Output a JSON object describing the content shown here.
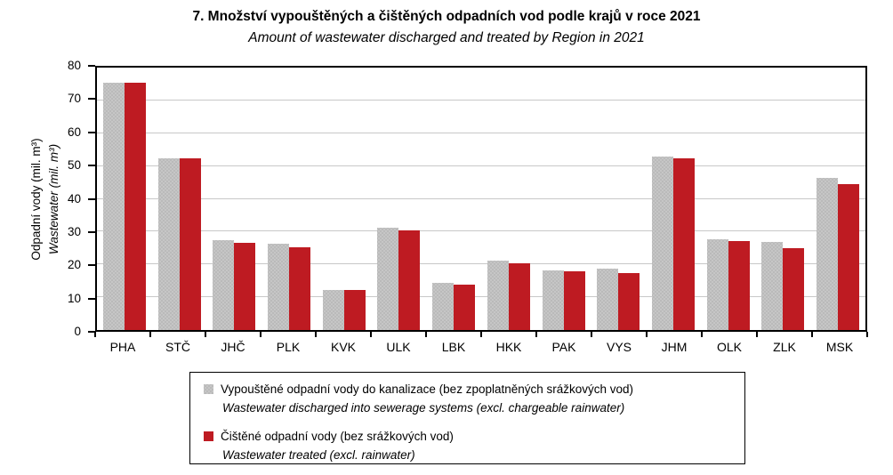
{
  "title": "7. Množství vypouštěných a čištěných odpadních vod podle krajů v roce 2021",
  "subtitle": "Amount of wastewater discharged and treated by Region in 2021",
  "y_axis": {
    "label_cs": "Odpadní vody (mil. m³)",
    "label_en": "Wastewater (mil. m³)",
    "ticks": [
      0,
      10,
      20,
      30,
      40,
      50,
      60,
      70,
      80
    ],
    "max": 80
  },
  "colors": {
    "bar_gray_base": "#c6c6c6",
    "bar_gray_dot": "#949494",
    "bar_red": "#be1b22",
    "gridline": "#c8c8c8",
    "axis": "#000000"
  },
  "chart_data": {
    "type": "bar",
    "title": "7. Množství vypouštěných a čištěných odpadních vod podle krajů v roce 2021",
    "subtitle": "Amount of wastewater discharged and treated by Region in 2021",
    "categories": [
      "PHA",
      "STČ",
      "JHČ",
      "PLK",
      "KVK",
      "ULK",
      "LBK",
      "HKK",
      "PAK",
      "VYS",
      "JHM",
      "OLK",
      "ZLK",
      "MSK"
    ],
    "series": [
      {
        "id": "discharged",
        "name_cs": "Vypouštěné odpadní vody do kanalizace (bez zpoplatněných srážkových vod)",
        "name_en": "Wastewater discharged into sewerage systems (excl. chargeable rainwater)",
        "color": "#c6c6c6",
        "values": [
          75.3,
          52.4,
          27.4,
          26.3,
          12.1,
          31.2,
          14.5,
          21.2,
          18.3,
          18.6,
          52.9,
          27.7,
          26.9,
          46.5
        ]
      },
      {
        "id": "treated",
        "name_cs": "Čištěné odpadní vody (bez srážkových vod)",
        "name_en": "Wastewater treated (excl. rainwater)",
        "color": "#be1b22",
        "values": [
          75.3,
          52.4,
          26.5,
          25.3,
          12.3,
          30.4,
          13.9,
          20.4,
          17.9,
          17.3,
          52.3,
          27.2,
          25.0,
          44.5
        ]
      }
    ],
    "xlabel": "",
    "ylabel_cs": "Odpadní vody (mil. m³)",
    "ylabel_en": "Wastewater (mil. m³)",
    "ylim": [
      0,
      80
    ],
    "ytick_step": 10,
    "grid": true,
    "legend_position": "bottom"
  },
  "legend": {
    "items": [
      {
        "id": "discharged",
        "label_cs": "Vypouštěné odpadní vody do kanalizace (bez zpoplatněných srážkových vod)",
        "label_en": "Wastewater discharged into sewerage systems (excl. chargeable rainwater)",
        "swatch": "gray"
      },
      {
        "id": "treated",
        "label_cs": "Čištěné odpadní vody (bez srážkových vod)",
        "label_en": "Wastewater treated (excl. rainwater)",
        "swatch": "red"
      }
    ]
  }
}
